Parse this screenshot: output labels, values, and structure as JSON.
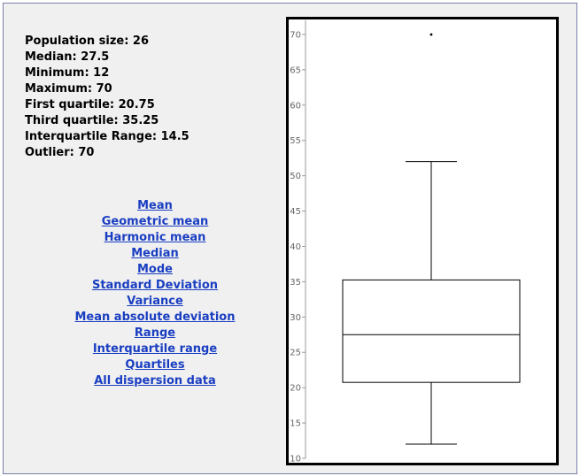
{
  "stats": {
    "lines": [
      "Population size: 26",
      "Median: 27.5",
      "Minimum: 12",
      "Maximum: 70",
      "First quartile: 20.75",
      "Third quartile: 35.25",
      "Interquartile Range: 14.5",
      "Outlier: 70"
    ]
  },
  "links": [
    "Mean",
    "Geometric mean",
    "Harmonic mean",
    "Median",
    "Mode",
    "Standard Deviation",
    "Variance",
    "Mean absolute deviation",
    "Range",
    "Interquartile range",
    "Quartiles",
    "All dispersion data"
  ],
  "colors": {
    "link": "#1a3ec2",
    "panel_bg": "#f0f0f0",
    "chart_border": "#000000"
  },
  "chart_data": {
    "type": "boxplot",
    "title": "",
    "xlabel": "",
    "ylabel": "",
    "ylim": [
      10,
      72
    ],
    "yticks": [
      10,
      15,
      20,
      25,
      30,
      35,
      40,
      45,
      50,
      55,
      60,
      65,
      70
    ],
    "ytick_labels": [
      "10",
      "15",
      "20",
      "25",
      "30",
      "35",
      "40",
      "45",
      "50",
      "55",
      "60",
      "65",
      "70"
    ],
    "min": 12,
    "q1": 20.75,
    "median": 27.5,
    "q3": 35.25,
    "whisker_high": 52,
    "outliers": [
      70
    ],
    "grid": false
  }
}
